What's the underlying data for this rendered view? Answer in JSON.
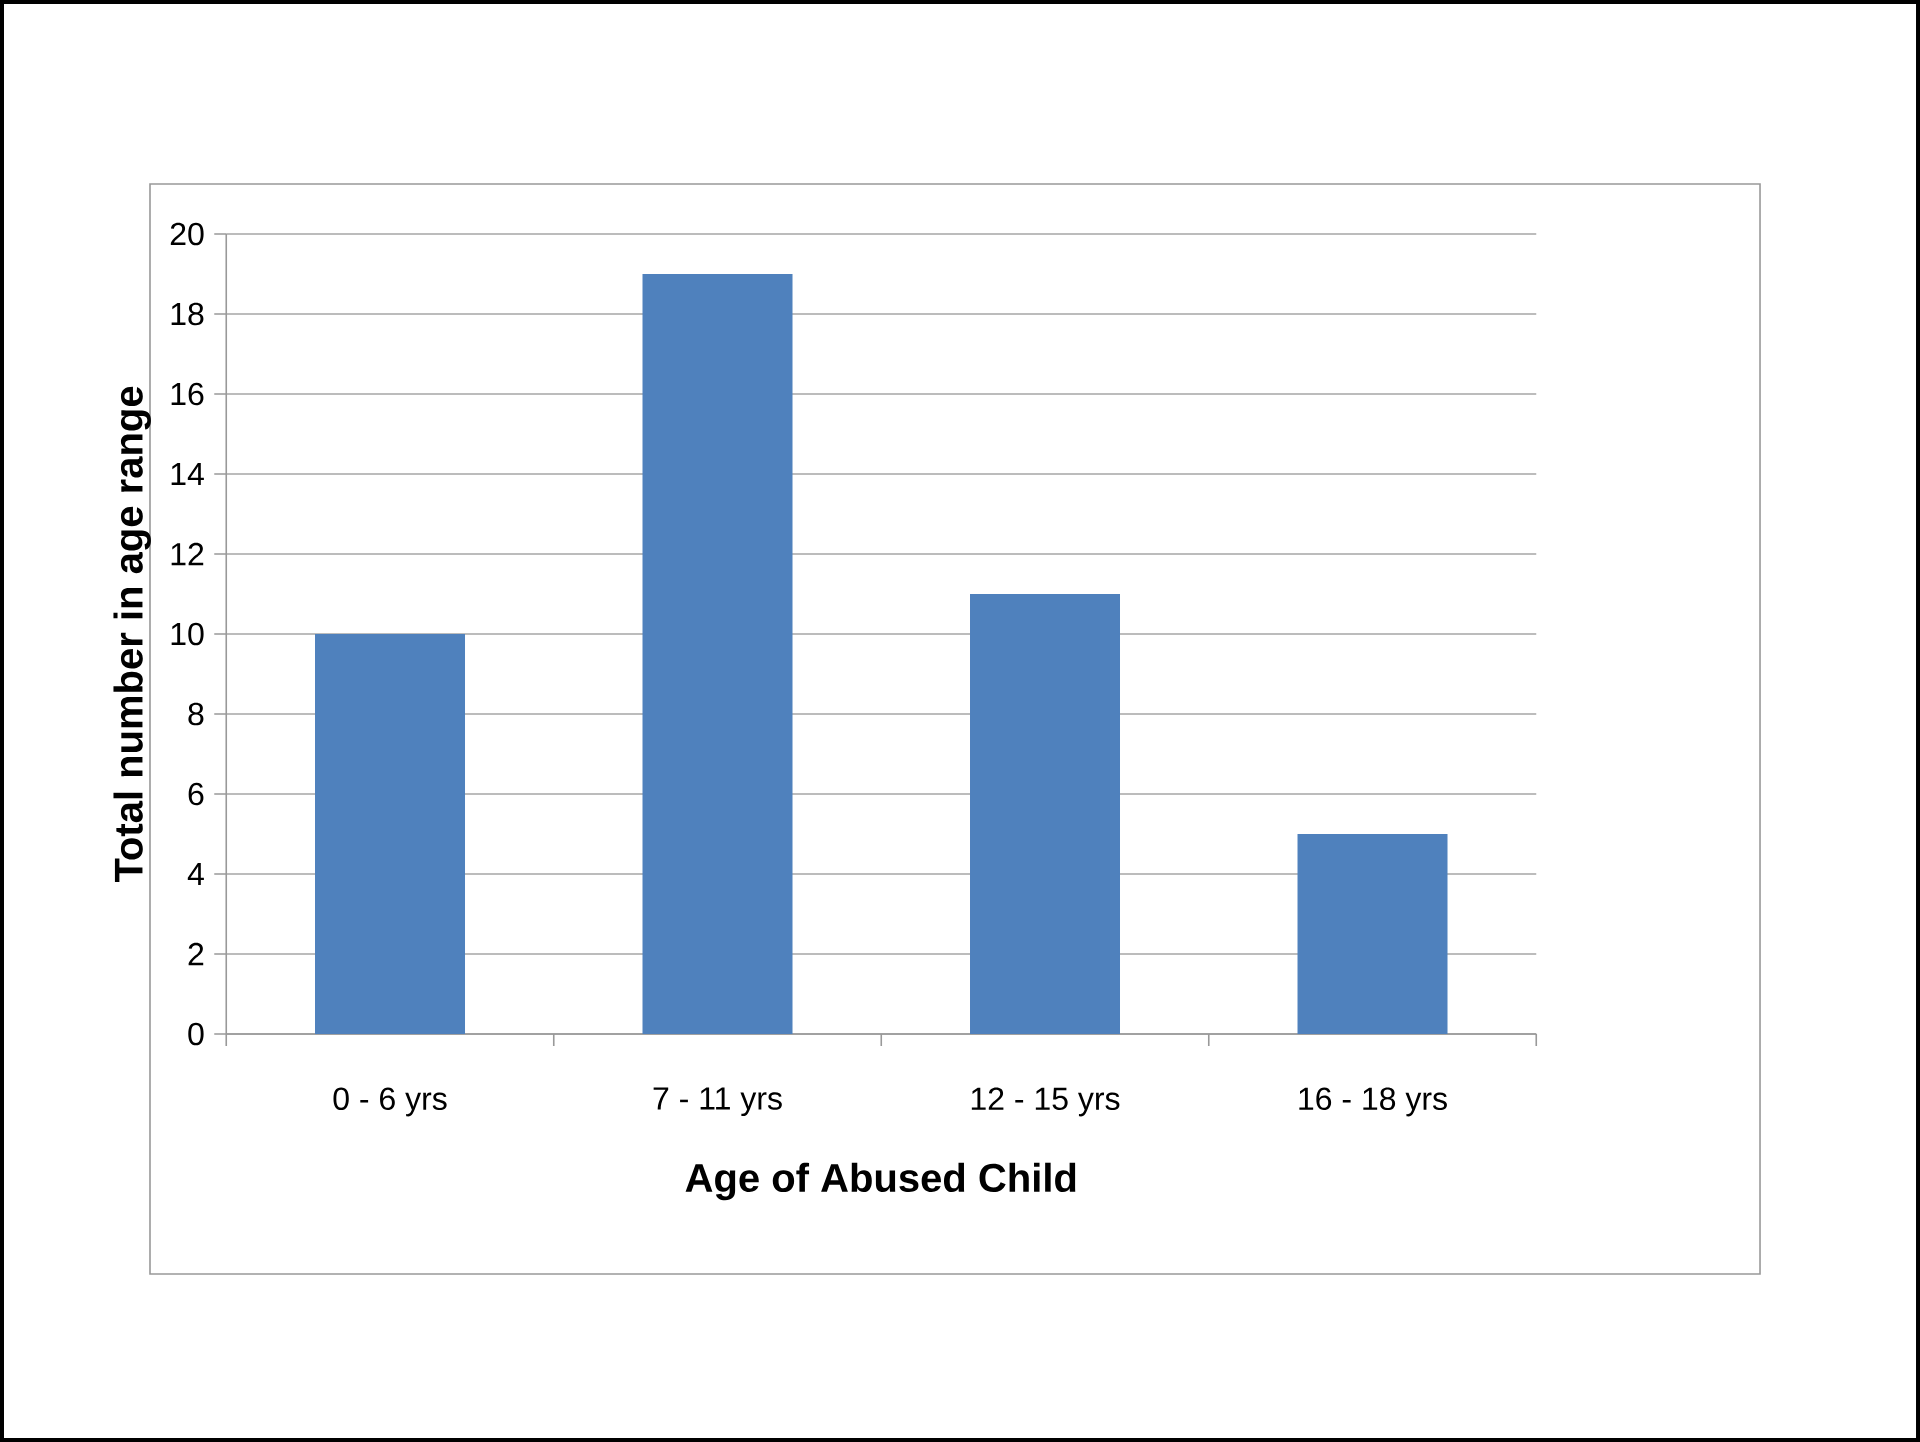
{
  "chart_data": {
    "type": "bar",
    "xlabel": "Age of Abused Child",
    "ylabel": "Total number in age range",
    "categories": [
      "0 - 6 yrs",
      "7 - 11 yrs",
      "12 - 15 yrs",
      "16 - 18 yrs"
    ],
    "values": [
      10,
      19,
      11,
      5
    ],
    "color": "#4f81bd",
    "ylim": [
      0,
      20
    ],
    "yticks": [
      0,
      2,
      4,
      6,
      8,
      10,
      12,
      14,
      16,
      18,
      20
    ],
    "grid": "y"
  }
}
